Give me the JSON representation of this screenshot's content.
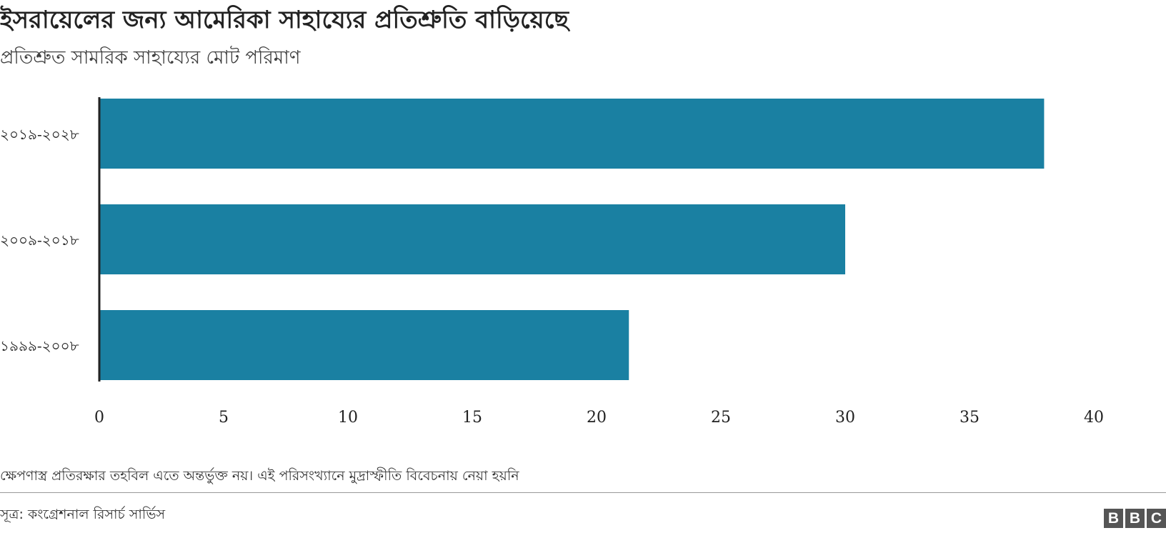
{
  "header": {
    "title": "ইসরায়েলের জন্য আমেরিকা সাহায্যের প্রতিশ্রুতি বাড়িয়েছে",
    "subtitle": "প্রতিশ্রুত সামরিক সাহায্যের মোট পরিমাণ"
  },
  "chart_data": {
    "type": "bar",
    "orientation": "horizontal",
    "categories": [
      "২০১৯-২০২৮",
      "২০০৯-২০১৮",
      "১৯৯৯-২০০৮"
    ],
    "values": [
      38.0,
      30.0,
      21.3
    ],
    "xlim": [
      0,
      40
    ],
    "x_ticks": [
      0,
      5,
      10,
      15,
      20,
      25,
      30,
      35,
      40
    ],
    "x_tick_labels": [
      "0",
      "5",
      "10",
      "15",
      "20",
      "25",
      "30",
      "35",
      "40"
    ],
    "bar_color": "#1a80a2",
    "grid": false
  },
  "footer": {
    "note": "ক্ষেপণাস্ত্র প্রতিরক্ষার তহবিল এতে অন্তর্ভুক্ত নয়। এই পরিসংখ্যানে মুদ্রাস্ফীতি বিবেচনায় নেয়া হয়নি",
    "source": "সূত্র: কংগ্রেশনাল রিসার্চ সার্ভিস",
    "logo_letters": [
      "B",
      "B",
      "C"
    ]
  }
}
